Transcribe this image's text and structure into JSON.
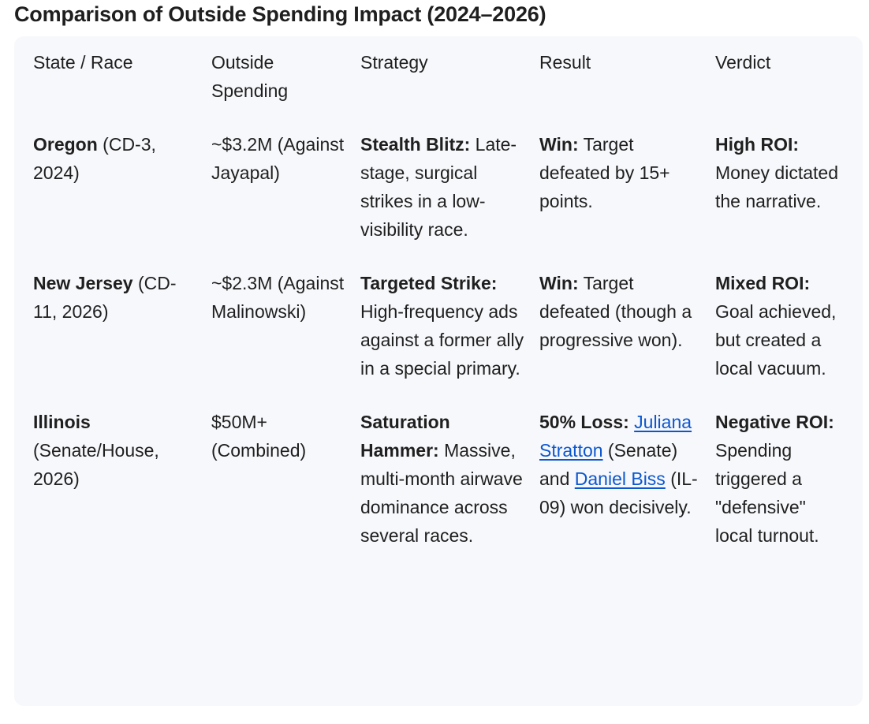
{
  "title": "Comparison of Outside Spending Impact (2024–2026)",
  "headers": {
    "race": "State / Race",
    "spending": "Outside Spending",
    "strategy": "Strategy",
    "result": "Result",
    "verdict": "Verdict"
  },
  "rows": [
    {
      "state": "Oregon",
      "race_detail": " (CD-3, 2024)",
      "spending": "~$3.2M (Against Jayapal)",
      "strategy_label": "Stealth Blitz:",
      "strategy_text": " Late-stage, surgical strikes in a low-visibility race.",
      "result_label": "Win:",
      "result_text": " Target defeated by 15+ points.",
      "verdict_label": "High ROI:",
      "verdict_text": " Money dictated the narrative."
    },
    {
      "state": "New Jersey",
      "race_detail": " (CD-11, 2026)",
      "spending": "~$2.3M (Against Malinowski)",
      "strategy_label": "Targeted Strike:",
      "strategy_text": " High-frequency ads against a former ally in a special primary.",
      "result_label": "Win:",
      "result_text": " Target defeated (though a progressive won).",
      "verdict_label": "Mixed ROI:",
      "verdict_text": " Goal achieved, but created a local vacuum."
    },
    {
      "state": "Illinois",
      "race_detail": " (Senate/House, 2026)",
      "spending": "$50M+ (Combined)",
      "strategy_label": "Saturation Hammer:",
      "strategy_text": " Massive, multi-month airwave dominance across several races.",
      "result_label": "50% Loss:",
      "result_link1": "Juliana Stratton",
      "result_mid": " (Senate) and ",
      "result_link2": "Daniel Biss",
      "result_end": " (IL-09) won decisively.",
      "verdict_label": "Negative ROI:",
      "verdict_text": " Spending triggered a \"defensive\" local turnout."
    }
  ]
}
